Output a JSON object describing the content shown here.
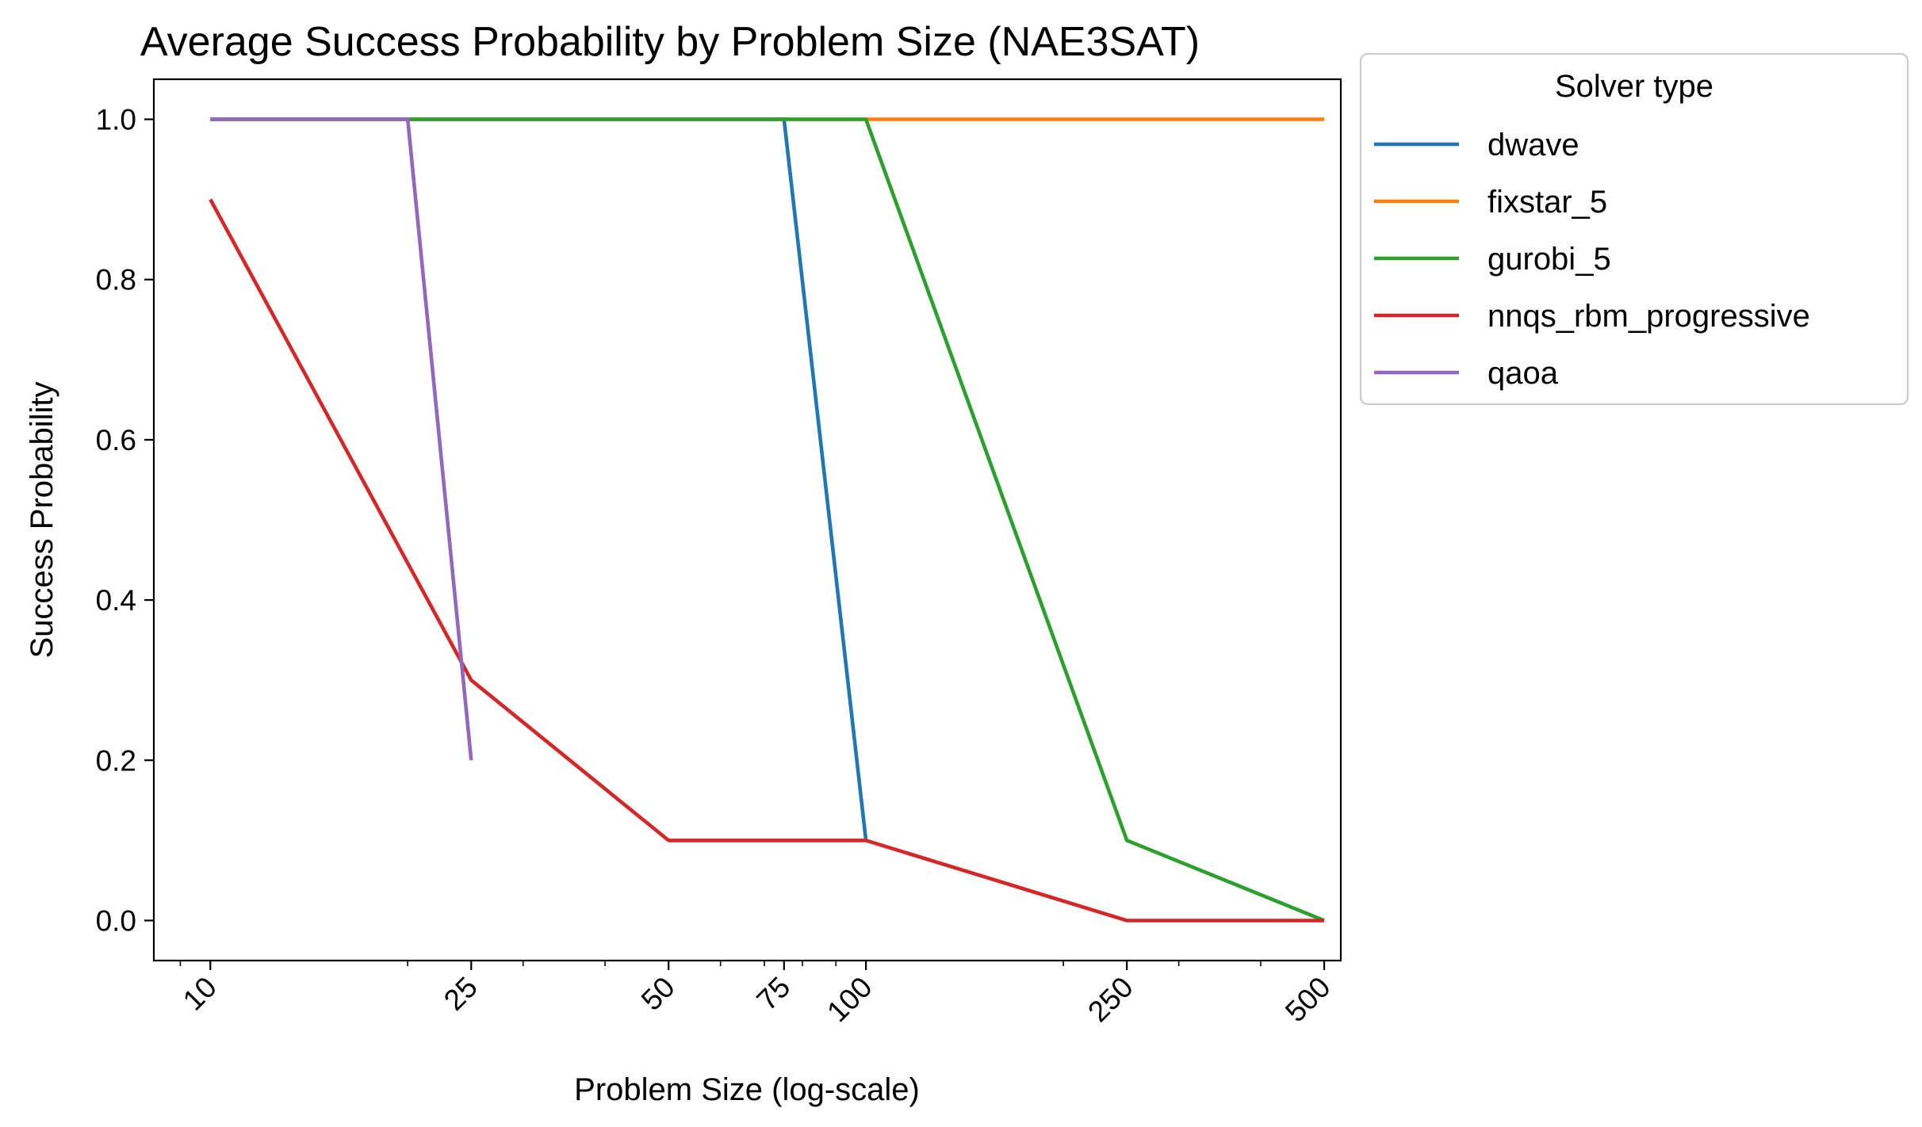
{
  "chart_data": {
    "type": "line",
    "title": "Average Success Probability by Problem Size (NAE3SAT)",
    "xlabel": "Problem Size (log-scale)",
    "ylabel": "Success Probability",
    "xscale": "log",
    "xlim": [
      8.2,
      530
    ],
    "ylim": [
      -0.05,
      1.05
    ],
    "xticks": [
      10,
      25,
      50,
      75,
      100,
      250,
      500
    ],
    "xtick_labels": [
      "10",
      "25",
      "50",
      "75",
      "100",
      "250",
      "500"
    ],
    "xtick_rotation": 45,
    "yticks": [
      0.0,
      0.2,
      0.4,
      0.6,
      0.8,
      1.0
    ],
    "ytick_labels": [
      "0.0",
      "0.2",
      "0.4",
      "0.6",
      "0.8",
      "1.0"
    ],
    "grid": false,
    "legend": {
      "title": "Solver type",
      "placement": "outside-top-right"
    },
    "series": [
      {
        "name": "dwave",
        "color": "#1f77b4",
        "x": [
          10,
          20,
          75,
          100
        ],
        "y": [
          1.0,
          1.0,
          1.0,
          0.1
        ]
      },
      {
        "name": "fixstar_5",
        "color": "#ff7f0e",
        "x": [
          10,
          20,
          50,
          75,
          100,
          250,
          500
        ],
        "y": [
          1.0,
          1.0,
          1.0,
          1.0,
          1.0,
          1.0,
          1.0
        ]
      },
      {
        "name": "gurobi_5",
        "color": "#2ca02c",
        "x": [
          10,
          20,
          50,
          75,
          100,
          250,
          500
        ],
        "y": [
          1.0,
          1.0,
          1.0,
          1.0,
          1.0,
          0.1,
          0.0
        ]
      },
      {
        "name": "nnqs_rbm_progressive",
        "color": "#d62728",
        "x": [
          10,
          25,
          50,
          100,
          250,
          500
        ],
        "y": [
          0.9,
          0.3,
          0.1,
          0.1,
          0.0,
          0.0
        ]
      },
      {
        "name": "qaoa",
        "color": "#9467bd",
        "x": [
          10,
          20,
          25
        ],
        "y": [
          1.0,
          1.0,
          0.2
        ]
      }
    ]
  }
}
